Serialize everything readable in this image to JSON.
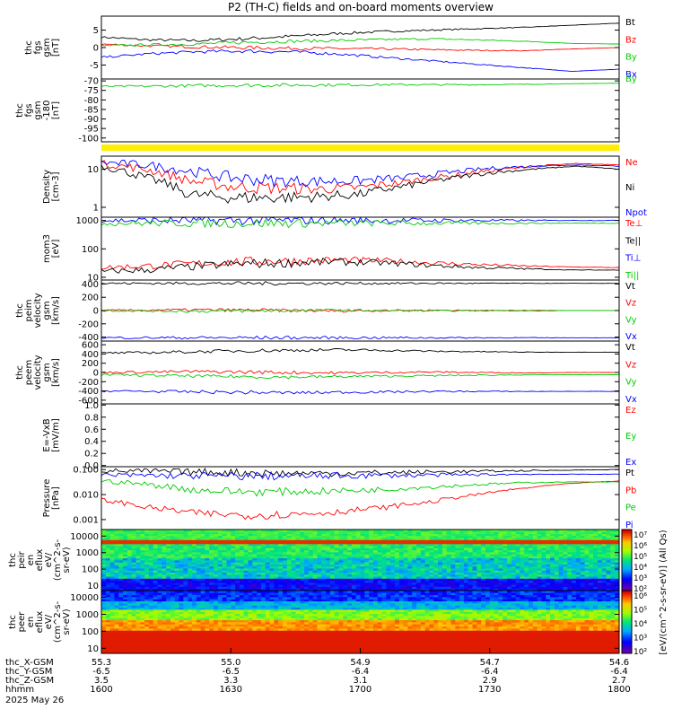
{
  "title": "P2 (TH-C) fields and on-board moments overview",
  "chart_data": [
    {
      "type": "line",
      "name": "fgs_gsm",
      "ylabel": [
        "thc",
        "fgs",
        "gsm",
        "[nT]"
      ],
      "ylim": [
        -9,
        9
      ],
      "ticks": [
        "5",
        "0",
        "-5"
      ],
      "tick_values": [
        5,
        0,
        -5
      ],
      "legend": [
        {
          "label": "Bt",
          "color": "#000000"
        },
        {
          "label": "Bz",
          "color": "#ff0000"
        },
        {
          "label": "By",
          "color": "#00cc00"
        },
        {
          "label": "Bx",
          "color": "#0000ff"
        }
      ],
      "series": [
        {
          "name": "Bt",
          "color": "#000000",
          "values": [
            3.0,
            2.2,
            2.0,
            2.5,
            3.2,
            4.0,
            4.6,
            5.0,
            5.4,
            5.8,
            6.4,
            7.0
          ]
        },
        {
          "name": "Bz",
          "color": "#ff0000",
          "values": [
            1.0,
            0.5,
            0.2,
            0.0,
            -0.2,
            -0.3,
            -0.4,
            -0.6,
            -0.8,
            -0.9,
            -0.4,
            0.0
          ]
        },
        {
          "name": "By",
          "color": "#00cc00",
          "values": [
            0.5,
            0.8,
            1.0,
            1.5,
            1.8,
            2.0,
            2.3,
            2.5,
            2.2,
            1.8,
            1.2,
            1.0
          ]
        },
        {
          "name": "Bx",
          "color": "#0000ff",
          "values": [
            -2.8,
            -1.8,
            -1.2,
            -1.0,
            -1.2,
            -1.8,
            -2.8,
            -3.8,
            -4.8,
            -5.8,
            -6.8,
            -6.2
          ]
        }
      ]
    },
    {
      "type": "line",
      "name": "fgs_gsm_zoom",
      "ylabel": [
        "thc",
        "fgs",
        "gsm",
        "-180",
        "[nT]"
      ],
      "ylim": [
        -102,
        -69
      ],
      "ticks": [
        "-70",
        "-75",
        "-80",
        "-85",
        "-90",
        "-95",
        "-100"
      ],
      "tick_values": [
        -70,
        -75,
        -80,
        -85,
        -90,
        -95,
        -100
      ],
      "legend": [
        {
          "label": "By",
          "color": "#00cc00"
        }
      ],
      "series": [
        {
          "name": "By",
          "color": "#00cc00",
          "values": [
            -73,
            -72.8,
            -72.5,
            -72.3,
            -72.2,
            -72.1,
            -72,
            -72,
            -72,
            -71.8,
            -71.5,
            -71.2
          ]
        }
      ]
    },
    {
      "type": "line",
      "name": "density",
      "scale": "log",
      "ylabel": [
        "Density",
        "[cm-3]"
      ],
      "ylim": [
        0.55,
        22
      ],
      "ticks": [
        "10",
        "1"
      ],
      "tick_values": [
        10,
        1
      ],
      "legend": [
        {
          "label": "Ne",
          "color": "#ff0000"
        },
        {
          "label": "Ni",
          "color": "#000000"
        },
        {
          "label": "Npot",
          "color": "#0000ff"
        }
      ],
      "series": [
        {
          "name": "Ne",
          "color": "#ff0000",
          "values": [
            14,
            10,
            5,
            3.5,
            3.2,
            3.0,
            3.3,
            4.5,
            6.5,
            9,
            12,
            14,
            13
          ]
        },
        {
          "name": "Ni",
          "color": "#000000",
          "values": [
            12,
            6,
            2.2,
            1.8,
            1.8,
            1.9,
            2.2,
            3.5,
            5.5,
            8,
            10,
            12,
            10
          ]
        },
        {
          "name": "Npot",
          "color": "#0000ff",
          "values": [
            15,
            13,
            9,
            6,
            5,
            4.8,
            5,
            6,
            8,
            10.5,
            12,
            13,
            12
          ]
        }
      ]
    },
    {
      "type": "line",
      "name": "moments_temperature",
      "scale": "log",
      "ylabel": [
        "mom3",
        "[eV]"
      ],
      "ylim": [
        8,
        1300
      ],
      "ticks": [
        "1000",
        "100",
        "10"
      ],
      "tick_values": [
        1000,
        100,
        10
      ],
      "legend": [
        {
          "label": "Te⊥",
          "color": "#ff0000"
        },
        {
          "label": "Te||",
          "color": "#000000"
        },
        {
          "label": "Ti⊥",
          "color": "#0000ff"
        },
        {
          "label": "Ti||",
          "color": "#00cc00"
        }
      ],
      "series": [
        {
          "name": "Te⊥",
          "color": "#ff0000",
          "values": [
            22,
            25,
            30,
            35,
            38,
            40,
            38,
            32,
            28,
            25,
            23,
            22
          ]
        },
        {
          "name": "Te||",
          "color": "#000000",
          "values": [
            16,
            18,
            24,
            30,
            32,
            35,
            32,
            26,
            22,
            20,
            18,
            18
          ]
        },
        {
          "name": "Ti⊥",
          "color": "#0000ff",
          "values": [
            1000,
            1000,
            1000,
            1000,
            1000,
            1000,
            1000,
            1000,
            1000,
            1000,
            1000,
            1000
          ]
        },
        {
          "name": "Ti||",
          "color": "#00cc00",
          "values": [
            800,
            800,
            800,
            800,
            800,
            800,
            800,
            800,
            800,
            800,
            800,
            800
          ]
        }
      ]
    },
    {
      "type": "line",
      "name": "peim_velocity",
      "ylabel": [
        "thc",
        "peim",
        "velocity",
        "gsm",
        "[km/s]"
      ],
      "ylim": [
        -460,
        460
      ],
      "ticks": [
        "400",
        "200",
        "0",
        "-200",
        "-400"
      ],
      "tick_values": [
        400,
        200,
        0,
        -200,
        -400
      ],
      "legend": [
        {
          "label": "Vt",
          "color": "#000000"
        },
        {
          "label": "Vz",
          "color": "#ff0000"
        },
        {
          "label": "Vy",
          "color": "#00cc00"
        },
        {
          "label": "Vx",
          "color": "#0000ff"
        }
      ],
      "series": [
        {
          "name": "Vt",
          "color": "#000000",
          "values": [
            410,
            410,
            410,
            410,
            410,
            410,
            410,
            410,
            410,
            410,
            410,
            410
          ]
        },
        {
          "name": "Vz",
          "color": "#ff0000",
          "values": [
            0,
            5,
            10,
            5,
            0,
            -5,
            0,
            5,
            0,
            -5,
            0,
            0
          ]
        },
        {
          "name": "Vy",
          "color": "#00cc00",
          "values": [
            0,
            -5,
            -10,
            -5,
            0,
            5,
            0,
            -5,
            0,
            5,
            0,
            0
          ]
        },
        {
          "name": "Vx",
          "color": "#0000ff",
          "values": [
            -410,
            -410,
            -410,
            -410,
            -410,
            -410,
            -410,
            -410,
            -410,
            -410,
            -410,
            -410
          ]
        }
      ]
    },
    {
      "type": "line",
      "name": "peem_velocity",
      "ylabel": [
        "thc",
        "peem",
        "velocity",
        "gsm",
        "[km/s]"
      ],
      "ylim": [
        -680,
        680
      ],
      "ticks": [
        "600",
        "400",
        "200",
        "0",
        "-200",
        "-400",
        "-600"
      ],
      "tick_values": [
        600,
        400,
        200,
        0,
        -200,
        -400,
        -600
      ],
      "legend": [
        {
          "label": "Vt",
          "color": "#000000"
        },
        {
          "label": "Vz",
          "color": "#ff0000"
        },
        {
          "label": "Vy",
          "color": "#00cc00"
        },
        {
          "label": "Vx",
          "color": "#0000ff"
        }
      ],
      "series": [
        {
          "name": "Vt",
          "color": "#000000",
          "values": [
            420,
            430,
            450,
            470,
            480,
            490,
            480,
            460,
            450,
            440,
            440,
            440
          ]
        },
        {
          "name": "Vz",
          "color": "#ff0000",
          "values": [
            0,
            10,
            20,
            10,
            0,
            -10,
            0,
            10,
            0,
            -10,
            0,
            0
          ]
        },
        {
          "name": "Vy",
          "color": "#00cc00",
          "values": [
            -50,
            -60,
            -80,
            -90,
            -100,
            -90,
            -80,
            -70,
            -60,
            -50,
            -50,
            -50
          ]
        },
        {
          "name": "Vx",
          "color": "#0000ff",
          "values": [
            -400,
            -410,
            -420,
            -430,
            -440,
            -430,
            -420,
            -410,
            -410,
            -410,
            -410,
            -410
          ]
        }
      ]
    },
    {
      "type": "line",
      "name": "efield",
      "ylabel": [
        "E=-VxB",
        "[mV/m]"
      ],
      "ylim": [
        -0.02,
        1.02
      ],
      "ticks": [
        "1.0",
        "0.8",
        "0.6",
        "0.4",
        "0.2",
        "0.0"
      ],
      "tick_values": [
        1.0,
        0.8,
        0.6,
        0.4,
        0.2,
        0.0
      ],
      "legend": [
        {
          "label": "Ez",
          "color": "#ff0000"
        },
        {
          "label": "Ey",
          "color": "#00cc00"
        },
        {
          "label": "Ex",
          "color": "#0000ff"
        }
      ],
      "series": []
    },
    {
      "type": "line",
      "name": "pressure",
      "scale": "log",
      "ylabel": [
        "Pressure",
        "[nPa]"
      ],
      "ylim": [
        0.0004,
        0.13
      ],
      "ticks": [
        "0.100",
        "0.010",
        "0.001"
      ],
      "tick_values": [
        0.1,
        0.01,
        0.001
      ],
      "legend": [
        {
          "label": "Pt",
          "color": "#000000"
        },
        {
          "label": "Pb",
          "color": "#ff0000"
        },
        {
          "label": "Pe",
          "color": "#00cc00"
        },
        {
          "label": "Pi",
          "color": "#0000ff"
        }
      ],
      "series": [
        {
          "name": "Pt",
          "color": "#000000",
          "values": [
            0.09,
            0.085,
            0.08,
            0.075,
            0.07,
            0.072,
            0.075,
            0.08,
            0.085,
            0.09,
            0.095,
            0.1
          ]
        },
        {
          "name": "Pb",
          "color": "#ff0000",
          "values": [
            0.006,
            0.003,
            0.0018,
            0.0015,
            0.0016,
            0.002,
            0.003,
            0.005,
            0.01,
            0.018,
            0.028,
            0.035
          ]
        },
        {
          "name": "Pe",
          "color": "#00cc00",
          "values": [
            0.035,
            0.025,
            0.015,
            0.013,
            0.013,
            0.014,
            0.016,
            0.02,
            0.025,
            0.03,
            0.032,
            0.032
          ]
        },
        {
          "name": "Pi",
          "color": "#0000ff",
          "values": [
            0.06,
            0.058,
            0.056,
            0.055,
            0.055,
            0.056,
            0.058,
            0.06,
            0.062,
            0.065,
            0.065,
            0.065
          ]
        }
      ]
    },
    {
      "type": "heatmap",
      "name": "peir_eflux",
      "scale": "log",
      "ylabel": [
        "thc",
        "peir",
        "en",
        "eflux",
        "eV/",
        "(cm^2-s-",
        "sr-eV)"
      ],
      "ylim": [
        5,
        25000
      ],
      "ticks": [
        "10000",
        "1000",
        "100",
        "10"
      ],
      "tick_values": [
        10000,
        1000,
        100,
        10
      ]
    },
    {
      "type": "heatmap",
      "name": "peer_eflux",
      "scale": "log",
      "ylabel": [
        "thc",
        "peer",
        "en",
        "eflux",
        "eV/",
        "(cm^2-s-",
        "sr-eV)"
      ],
      "ylim": [
        5,
        25000
      ],
      "ticks": [
        "10000",
        "1000",
        "100",
        "10"
      ],
      "tick_values": [
        10000,
        1000,
        100,
        10
      ]
    }
  ],
  "colorbar": {
    "title": "[eV/(cm^2-s-sr-eV)] (All Qs)",
    "ticks_top": [
      "10⁷",
      "10⁶",
      "10⁵",
      "10⁴",
      "10³",
      "10²"
    ],
    "ticks_bottom": [
      "10⁶",
      "10⁵",
      "10⁴",
      "10³",
      "10²"
    ]
  },
  "x_axis": {
    "rows": [
      {
        "label": "thc_X-GSM",
        "values": [
          "55.3",
          "55.0",
          "54.9",
          "54.7",
          "54.6"
        ]
      },
      {
        "label": "thc_Y-GSM",
        "values": [
          "-6.5",
          "-6.5",
          "-6.4",
          "-6.4",
          "-6.4"
        ]
      },
      {
        "label": "thc_Z-GSM",
        "values": [
          "3.5",
          "3.3",
          "3.1",
          "2.9",
          "2.7"
        ]
      },
      {
        "label": "hhmm",
        "values": [
          "1600",
          "1630",
          "1700",
          "1730",
          "1800"
        ]
      }
    ],
    "date": "2025 May 26"
  }
}
